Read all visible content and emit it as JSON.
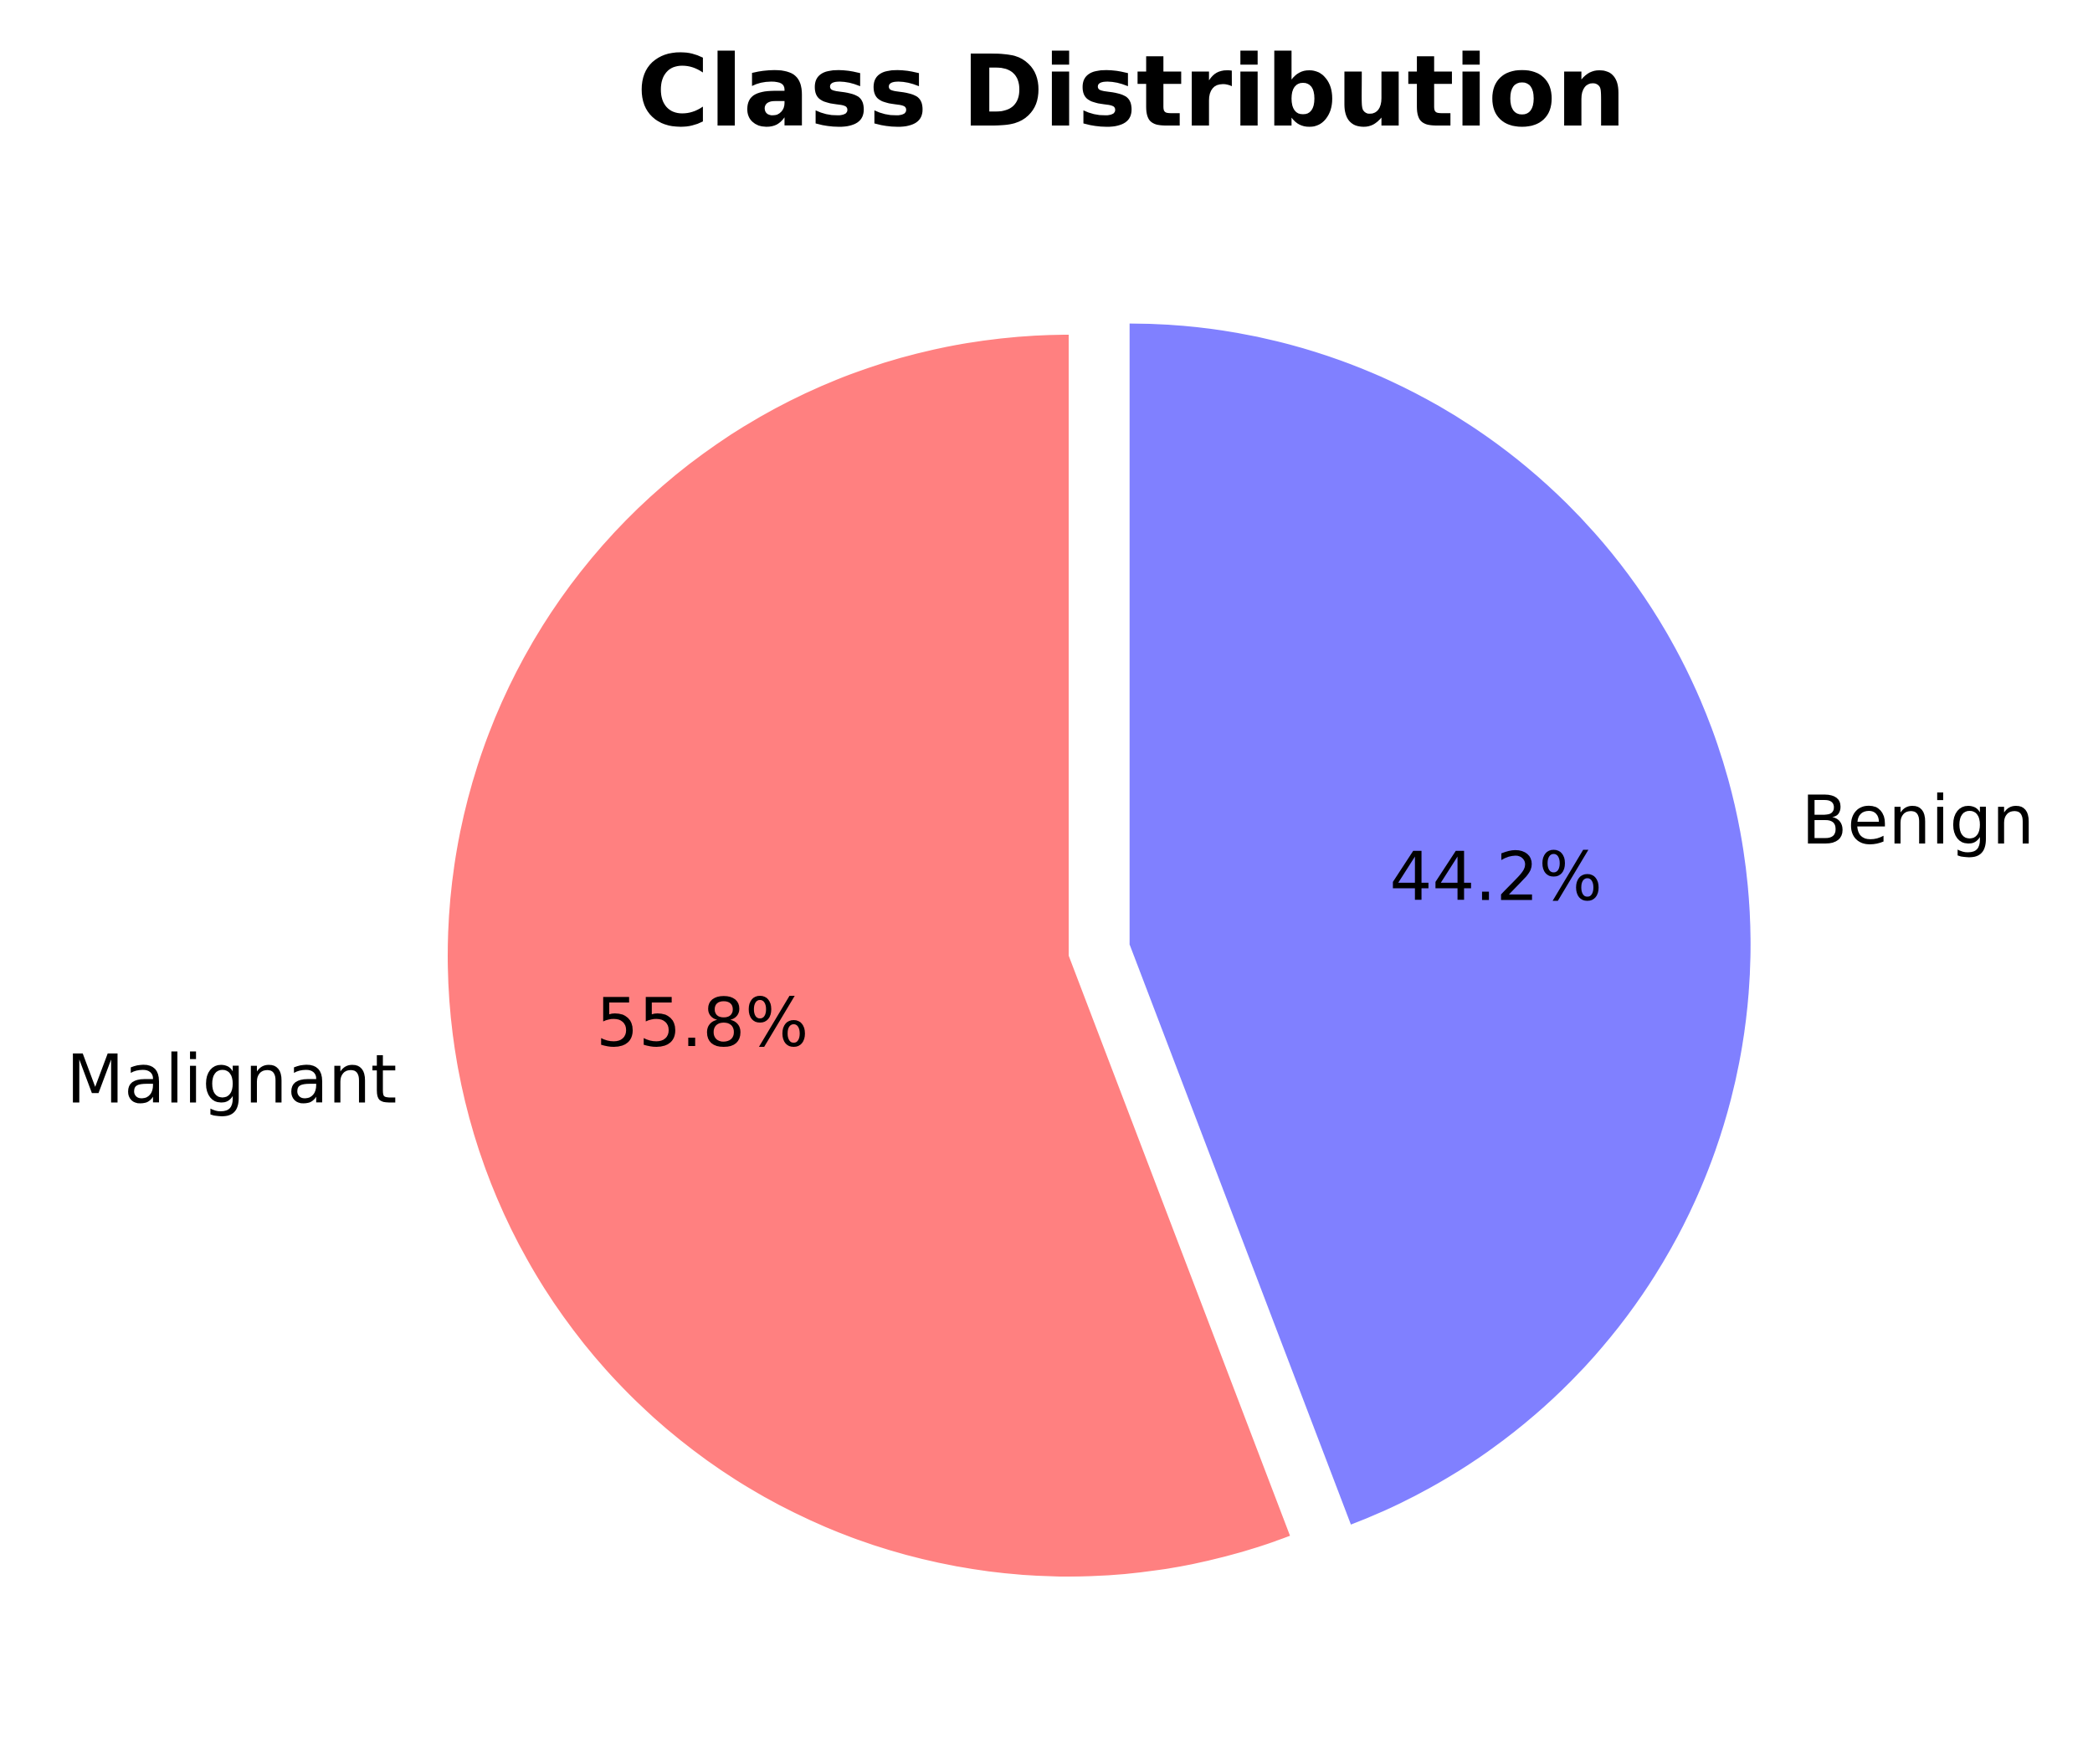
{
  "chart_data": {
    "type": "pie",
    "title": "Class Distribution",
    "start_angle_deg": 90,
    "direction": "clockwise",
    "slices": [
      {
        "label": "Benign",
        "value": 44.2,
        "pct_label": "44.2%",
        "color": "#8080ff",
        "exploded": true
      },
      {
        "label": "Malignant",
        "value": 55.8,
        "pct_label": "55.8%",
        "color": "#ff8080",
        "exploded": false
      }
    ]
  }
}
